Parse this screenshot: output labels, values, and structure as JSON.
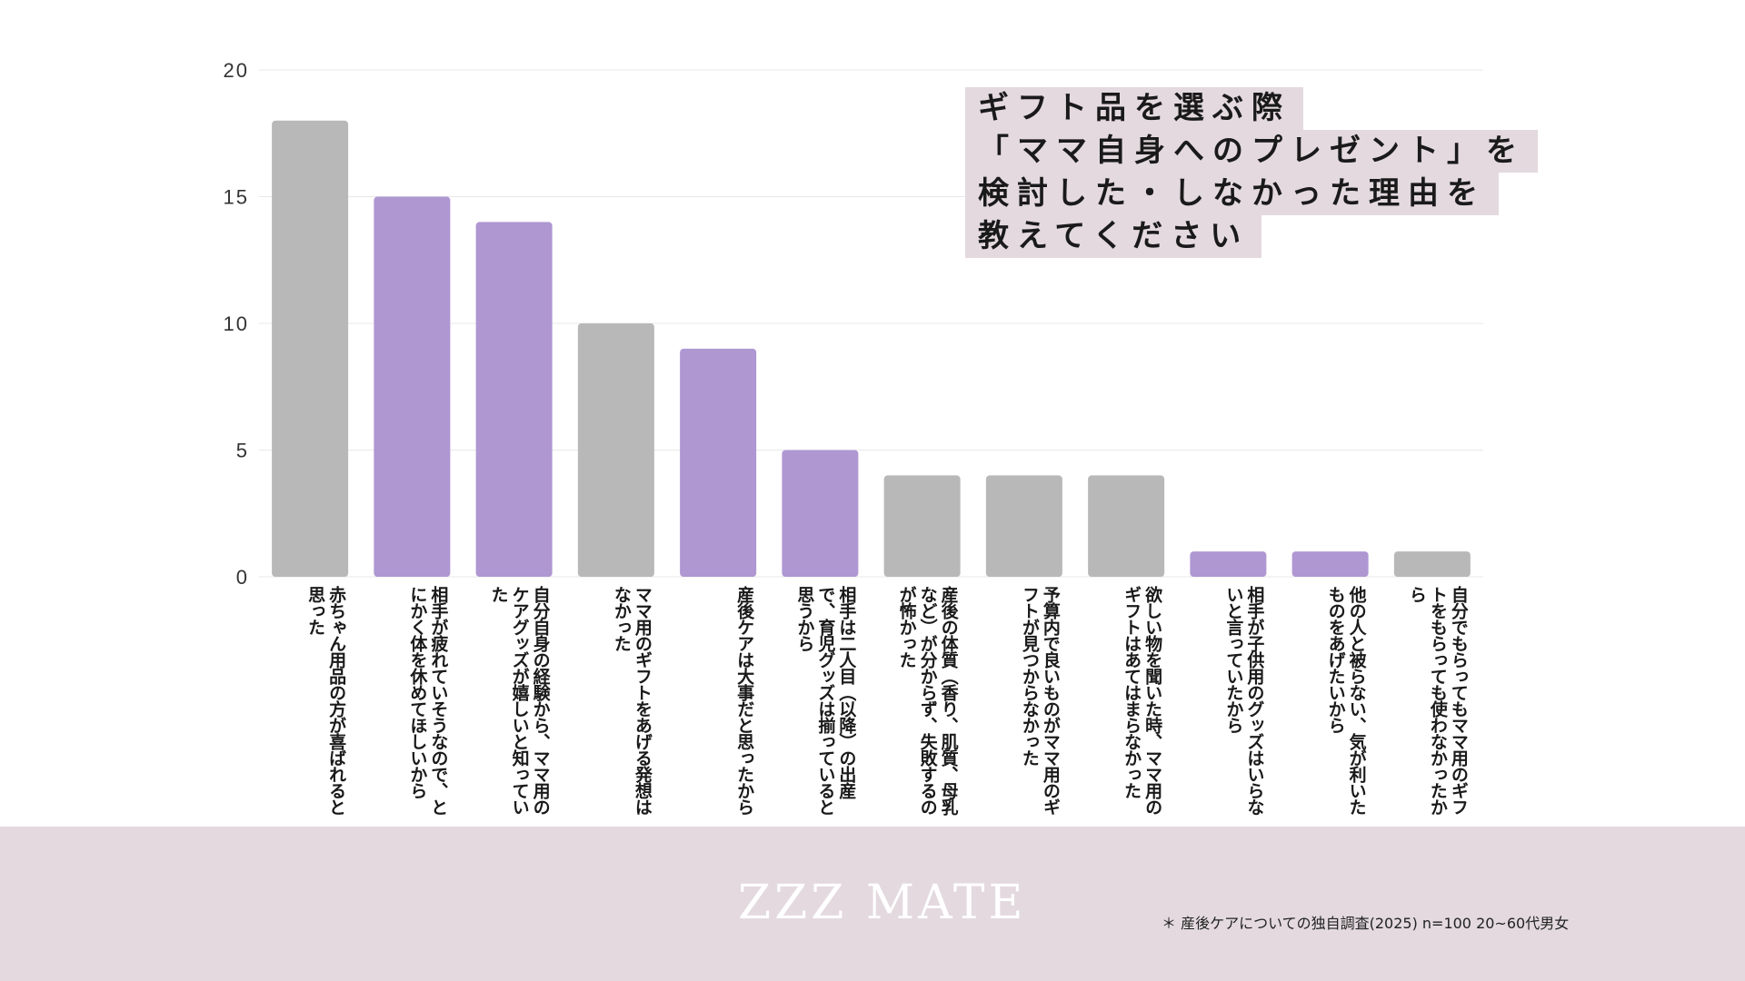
{
  "chart_data": {
    "type": "bar",
    "title_lines": [
      "ギフト品を選ぶ際",
      "「ママ自身へのプレゼント」を",
      "検討した・しなかった理由を",
      "教えてください"
    ],
    "ylim": [
      0,
      20
    ],
    "yticks": [
      "0",
      "5",
      "10",
      "15",
      "20"
    ],
    "grid": true,
    "categories": [
      "赤ちゃん用品の方が喜ばれると思った",
      "相手が疲れていそうなので、とにかく体を休めてほしいから",
      "自分自身の経験から、ママ用のケアグッズが嬉しいと知っていた",
      "ママ用のギフトをあげる発想はなかった",
      "産後ケアは大事だと思ったから",
      "相手は二人目（以降）の出産で、育児グッズは揃っていると思うから",
      "産後の体質（香り、肌質、母乳など）が分からず、失敗するのが怖かった",
      "予算内で良いものがママ用のギフトが見つからなかった",
      "欲しい物を聞いた時、ママ用のギフトはあてはまらなかった",
      "相手が子供用のグッズはいらないと言っていたから",
      "他の人と被らない、気が利いたものをあげたいから",
      "自分でもらってもママ用のギフトをもらっても使わなかったから"
    ],
    "values": [
      18,
      15,
      14,
      10,
      9,
      5,
      4,
      4,
      4,
      1,
      1,
      1
    ],
    "bar_colors": [
      "#b8b8b8",
      "#af97d2",
      "#af97d2",
      "#b8b8b8",
      "#af97d2",
      "#af97d2",
      "#b8b8b8",
      "#b8b8b8",
      "#b8b8b8",
      "#af97d2",
      "#af97d2",
      "#b8b8b8"
    ]
  },
  "footer": {
    "brand": "ZZZ MATE",
    "source": "＊ 産後ケアについての独自調査(2025) n=100 20~60代男女"
  },
  "colors": {
    "gray_bar": "#b8b8b8",
    "purple_bar": "#af97d2",
    "title_bg": "#e3d9de",
    "footer_bg": "#e3d9de",
    "grid": "#e8e8e8"
  }
}
